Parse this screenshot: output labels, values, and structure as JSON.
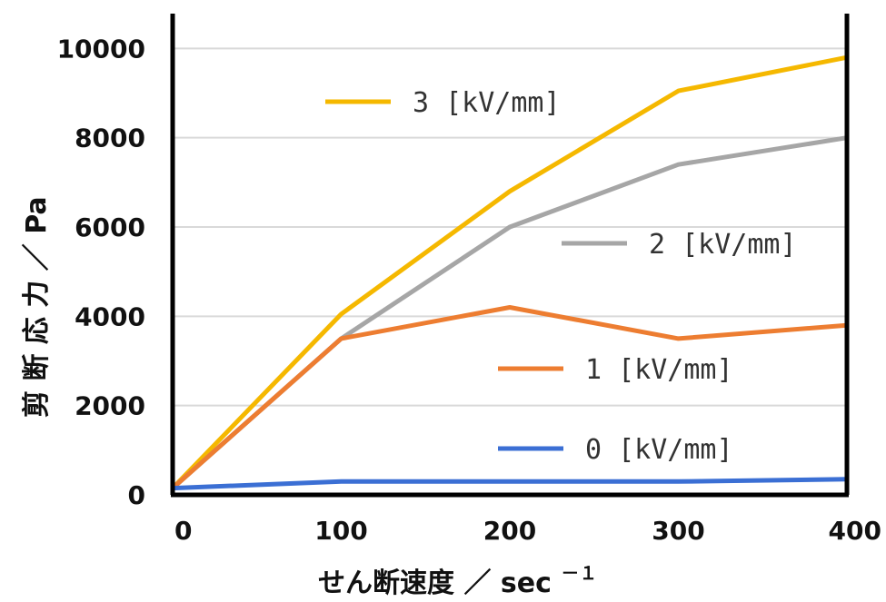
{
  "chart_data": {
    "type": "line",
    "x": [
      0,
      100,
      200,
      300,
      400
    ],
    "xlim": [
      0,
      400
    ],
    "ylim": [
      0,
      10000
    ],
    "xticks": [
      "0",
      "100",
      "200",
      "300",
      "400"
    ],
    "yticks": [
      "0",
      "2000",
      "4000",
      "6000",
      "8000",
      "10000"
    ],
    "xlabel": "せん断速度 ／ sec",
    "xlabel_sup": "－１",
    "ylabel": "剪 断 応 力 ／ Pa",
    "grid": "horizontal",
    "legend": "inline labels",
    "series": [
      {
        "name": "3 [kV/mm]",
        "color": "#F5B800",
        "values": [
          150,
          4050,
          6800,
          9050,
          9800
        ]
      },
      {
        "name": "2 [kV/mm]",
        "color": "#A6A6A6",
        "values": [
          150,
          3500,
          6000,
          7400,
          8000
        ]
      },
      {
        "name": "1 [kV/mm]",
        "color": "#ED7D31",
        "values": [
          150,
          3500,
          4200,
          3500,
          3800
        ]
      },
      {
        "name": "0 [kV/mm]",
        "color": "#3B6FD4",
        "values": [
          150,
          300,
          300,
          300,
          350
        ]
      }
    ]
  }
}
